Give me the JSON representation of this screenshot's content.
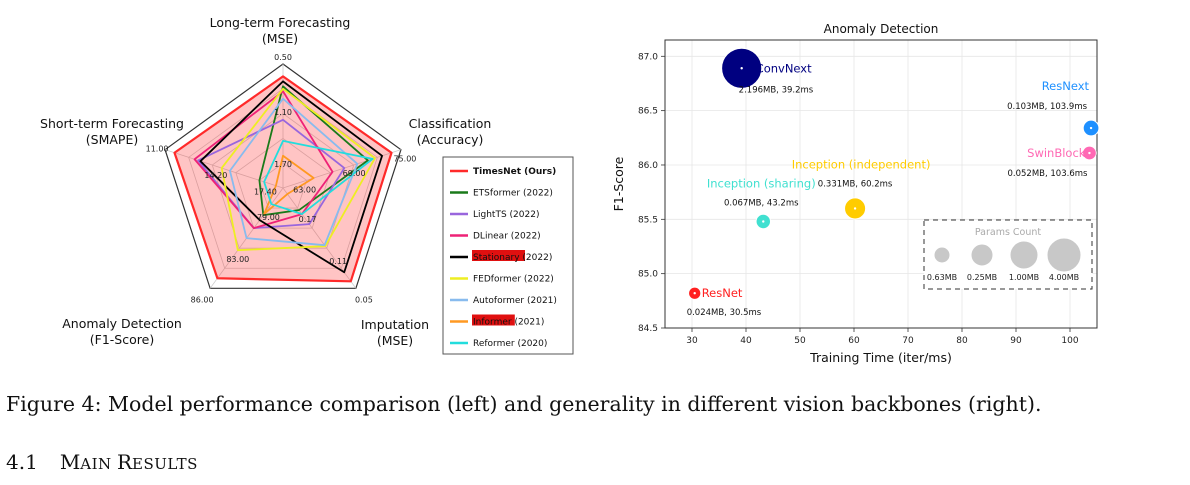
{
  "chart_data": [
    {
      "type": "radar",
      "axes": [
        {
          "name": "Long-term Forecasting",
          "unit": "(MSE)",
          "ticks": [
            "0.50",
            "1.10",
            "1.70"
          ]
        },
        {
          "name": "Classification",
          "unit": "(Accuracy)",
          "ticks": [
            "75.00",
            "69.00",
            "63.00"
          ]
        },
        {
          "name": "Imputation",
          "unit": "(MSE)",
          "ticks": [
            "0.05",
            "0.11",
            "0.17"
          ]
        },
        {
          "name": "Anomaly Detection",
          "unit": "(F1-Score)",
          "ticks": [
            "86.00",
            "83.00",
            "79.00"
          ]
        },
        {
          "name": "Short-term Forecasting",
          "unit": "(SMAPE)",
          "ticks": [
            "11.00",
            "14.20",
            "17.40"
          ]
        }
      ],
      "legend_position": "right",
      "series": [
        {
          "name": "TimesNet (Ours)",
          "color": "#ff2a2a",
          "fill": true,
          "values": [
            0.9,
            0.92,
            0.93,
            0.9,
            0.92
          ]
        },
        {
          "name": "ETSformer (2022)",
          "color": "#1a7a1a",
          "values": [
            0.82,
            0.72,
            0.22,
            0.27,
            0.2
          ]
        },
        {
          "name": "LightTS (2022)",
          "color": "#9966dd",
          "values": [
            0.55,
            0.52,
            0.36,
            0.4,
            0.72
          ]
        },
        {
          "name": "DLinear (2022)",
          "color": "#ee2277",
          "values": [
            0.78,
            0.42,
            0.26,
            0.4,
            0.75
          ]
        },
        {
          "name": "Stationary (2022)",
          "color": "#000000",
          "values": [
            0.86,
            0.84,
            0.84,
            0.32,
            0.7
          ]
        },
        {
          "name": "FEDformer (2022)",
          "color": "#eeee22",
          "values": [
            0.8,
            0.78,
            0.58,
            0.62,
            0.52
          ]
        },
        {
          "name": "Autoformer (2021)",
          "color": "#88bbee",
          "values": [
            0.72,
            0.63,
            0.57,
            0.5,
            0.45
          ]
        },
        {
          "name": "Informer (2021)",
          "color": "#ff9922",
          "values": [
            0.26,
            0.26,
            0.06,
            0.26,
            0.06
          ]
        },
        {
          "name": "Reformer (2020)",
          "color": "#22dddd",
          "values": [
            0.38,
            0.76,
            0.26,
            0.16,
            0.16
          ]
        }
      ],
      "highlighted_labels": [
        "Stationary",
        "Informer"
      ]
    },
    {
      "type": "scatter",
      "title": "Anomaly Detection",
      "xlabel": "Training Time (iter/ms)",
      "ylabel": "F1-Score",
      "xlim": [
        25,
        105
      ],
      "ylim": [
        84.5,
        87.15
      ],
      "xticks": [
        "30",
        "40",
        "50",
        "60",
        "70",
        "80",
        "90",
        "100"
      ],
      "yticks": [
        "84.5",
        "85.0",
        "85.5",
        "86.0",
        "86.5",
        "87.0"
      ],
      "points": [
        {
          "name": "ConvNext",
          "x": 39.2,
          "y": 86.89,
          "params": 2.196,
          "info": "2.196MB, 39.2ms",
          "color": "#000080"
        },
        {
          "name": "ResNext",
          "x": 103.9,
          "y": 86.34,
          "params": 0.103,
          "info": "0.103MB, 103.9ms",
          "color": "#1e90ff"
        },
        {
          "name": "SwinBlock",
          "x": 103.6,
          "y": 86.11,
          "params": 0.052,
          "info": "0.052MB, 103.6ms",
          "color": "#ff69b4"
        },
        {
          "name": "Inception (independent)",
          "x": 60.2,
          "y": 85.6,
          "params": 0.331,
          "info": "0.331MB, 60.2ms",
          "color": "#ffcc00"
        },
        {
          "name": "Inception (sharing)",
          "x": 43.2,
          "y": 85.48,
          "params": 0.067,
          "info": "0.067MB, 43.2ms",
          "color": "#40e0d0"
        },
        {
          "name": "ResNet",
          "x": 30.5,
          "y": 84.82,
          "params": 0.024,
          "info": "0.024MB, 30.5ms",
          "color": "#ff2020"
        }
      ],
      "size_legend": {
        "title": "Params Count",
        "items": [
          {
            "label": "0.63MB",
            "value": 0.63
          },
          {
            "label": "0.25MB",
            "value": 0.25
          },
          {
            "label": "1.00MB",
            "value": 1.0
          },
          {
            "label": "4.00MB",
            "value": 4.0
          }
        ]
      }
    }
  ],
  "caption": "Figure 4: Model performance comparison (left) and generality in different vision backbones (right).",
  "section": {
    "number": "4.1",
    "title_first": "M",
    "title_rest1": "AIN ",
    "title_first2": "R",
    "title_rest2": "ESULTS"
  }
}
